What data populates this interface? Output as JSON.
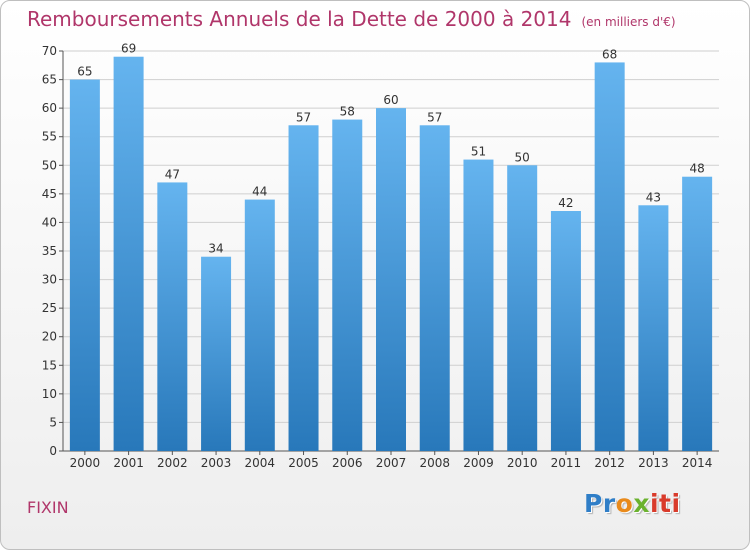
{
  "header": {
    "title": "Remboursements Annuels de la Dette de 2000 à 2014",
    "unit": "(en milliers d'€)"
  },
  "footer": {
    "commune": "FIXIN",
    "logo_parts": [
      "Pr",
      "o",
      "x",
      "iti"
    ]
  },
  "colors": {
    "bar_top": "#65b4ef",
    "bar_bottom": "#2878ba",
    "title": "#b0366a",
    "grid": "#cfcfcf",
    "logo": [
      "#2f7ec7",
      "#e98a1b",
      "#6bb22e",
      "#d93b2b"
    ]
  },
  "chart_data": {
    "type": "bar",
    "title": "Remboursements Annuels de la Dette de 2000 à 2014",
    "subtitle": "(en milliers d'€)",
    "categories": [
      "2000",
      "2001",
      "2002",
      "2003",
      "2004",
      "2005",
      "2006",
      "2007",
      "2008",
      "2009",
      "2010",
      "2011",
      "2012",
      "2013",
      "2014"
    ],
    "values": [
      65,
      69,
      47,
      34,
      44,
      57,
      58,
      60,
      57,
      51,
      50,
      42,
      68,
      43,
      48
    ],
    "data_labels": [
      "65",
      "69",
      "47",
      "34",
      "44",
      "57",
      "58",
      "60",
      "57",
      "51",
      "50",
      "42",
      "68",
      "43",
      "48"
    ],
    "y_ticks": [
      0,
      5,
      10,
      15,
      20,
      25,
      30,
      35,
      40,
      45,
      50,
      55,
      60,
      65,
      70
    ],
    "ylim": [
      0,
      70
    ],
    "grid": true
  }
}
